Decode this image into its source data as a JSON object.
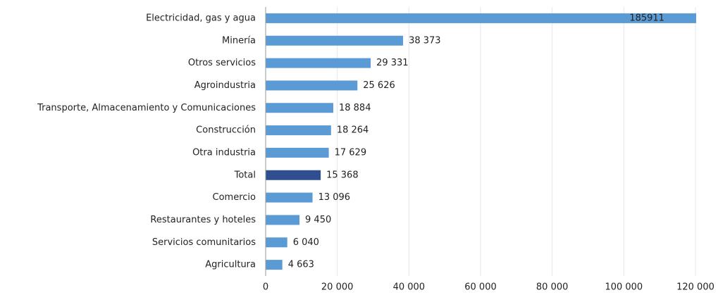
{
  "chart_data": {
    "type": "barh",
    "categories": [
      "Electricidad, gas y agua",
      "Minería",
      "Otros servicios",
      "Agroindustria",
      "Transporte, Almacenamiento y Comunicaciones",
      "Construcción",
      "Otra industria",
      "Total",
      "Comercio",
      "Restaurantes y hoteles",
      "Servicios comunitarios",
      "Agricultura"
    ],
    "values": [
      185911,
      38373,
      29331,
      25626,
      18884,
      18264,
      17629,
      15368,
      13096,
      9450,
      6040,
      4663
    ],
    "value_labels": [
      "185911",
      "38 373",
      "29 331",
      "25 626",
      "18 884",
      "18 264",
      "17 629",
      "15 368",
      "13 096",
      "9 450",
      "6 040",
      "4 663"
    ],
    "colors": [
      "#5b9bd5",
      "#5b9bd5",
      "#5b9bd5",
      "#5b9bd5",
      "#5b9bd5",
      "#5b9bd5",
      "#5b9bd5",
      "#2f4f8f",
      "#5b9bd5",
      "#5b9bd5",
      "#5b9bd5",
      "#5b9bd5"
    ],
    "xlim": [
      0,
      120000
    ],
    "xticks": [
      0,
      {
        "value": 20000,
        "label": "20 000"
      },
      {
        "value": 40000,
        "label": "40 000"
      },
      {
        "value": 60000,
        "label": "60 000"
      },
      {
        "value": 80000,
        "label": "80 000"
      },
      {
        "value": 100000,
        "label": "100 000"
      },
      {
        "value": 120000,
        "label": "120 000"
      }
    ],
    "grid": true
  }
}
